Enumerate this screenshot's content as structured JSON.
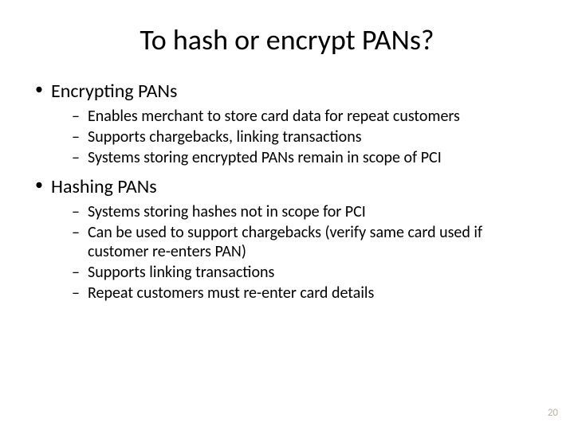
{
  "slide": {
    "title": "To hash or encrypt PANs?",
    "title_fontsize": 36,
    "body_fontsize_level1": 24,
    "body_fontsize_level2": 20,
    "background_color": "#ffffff",
    "text_color": "#000000",
    "bullets": [
      {
        "label": "Encrypting PANs",
        "sub": [
          "Enables merchant to store card data for repeat customers",
          "Supports chargebacks, linking transactions",
          "Systems storing encrypted PANs remain in scope of PCI"
        ]
      },
      {
        "label": "Hashing PANs",
        "sub": [
          "Systems storing hashes not in scope for PCI",
          "Can be used to support chargebacks (verify same card used if customer re-enters PAN)",
          "Supports linking transactions",
          "Repeat customers must re-enter card details"
        ]
      }
    ],
    "page_number": "20",
    "page_number_color": "#b9b1a6"
  }
}
